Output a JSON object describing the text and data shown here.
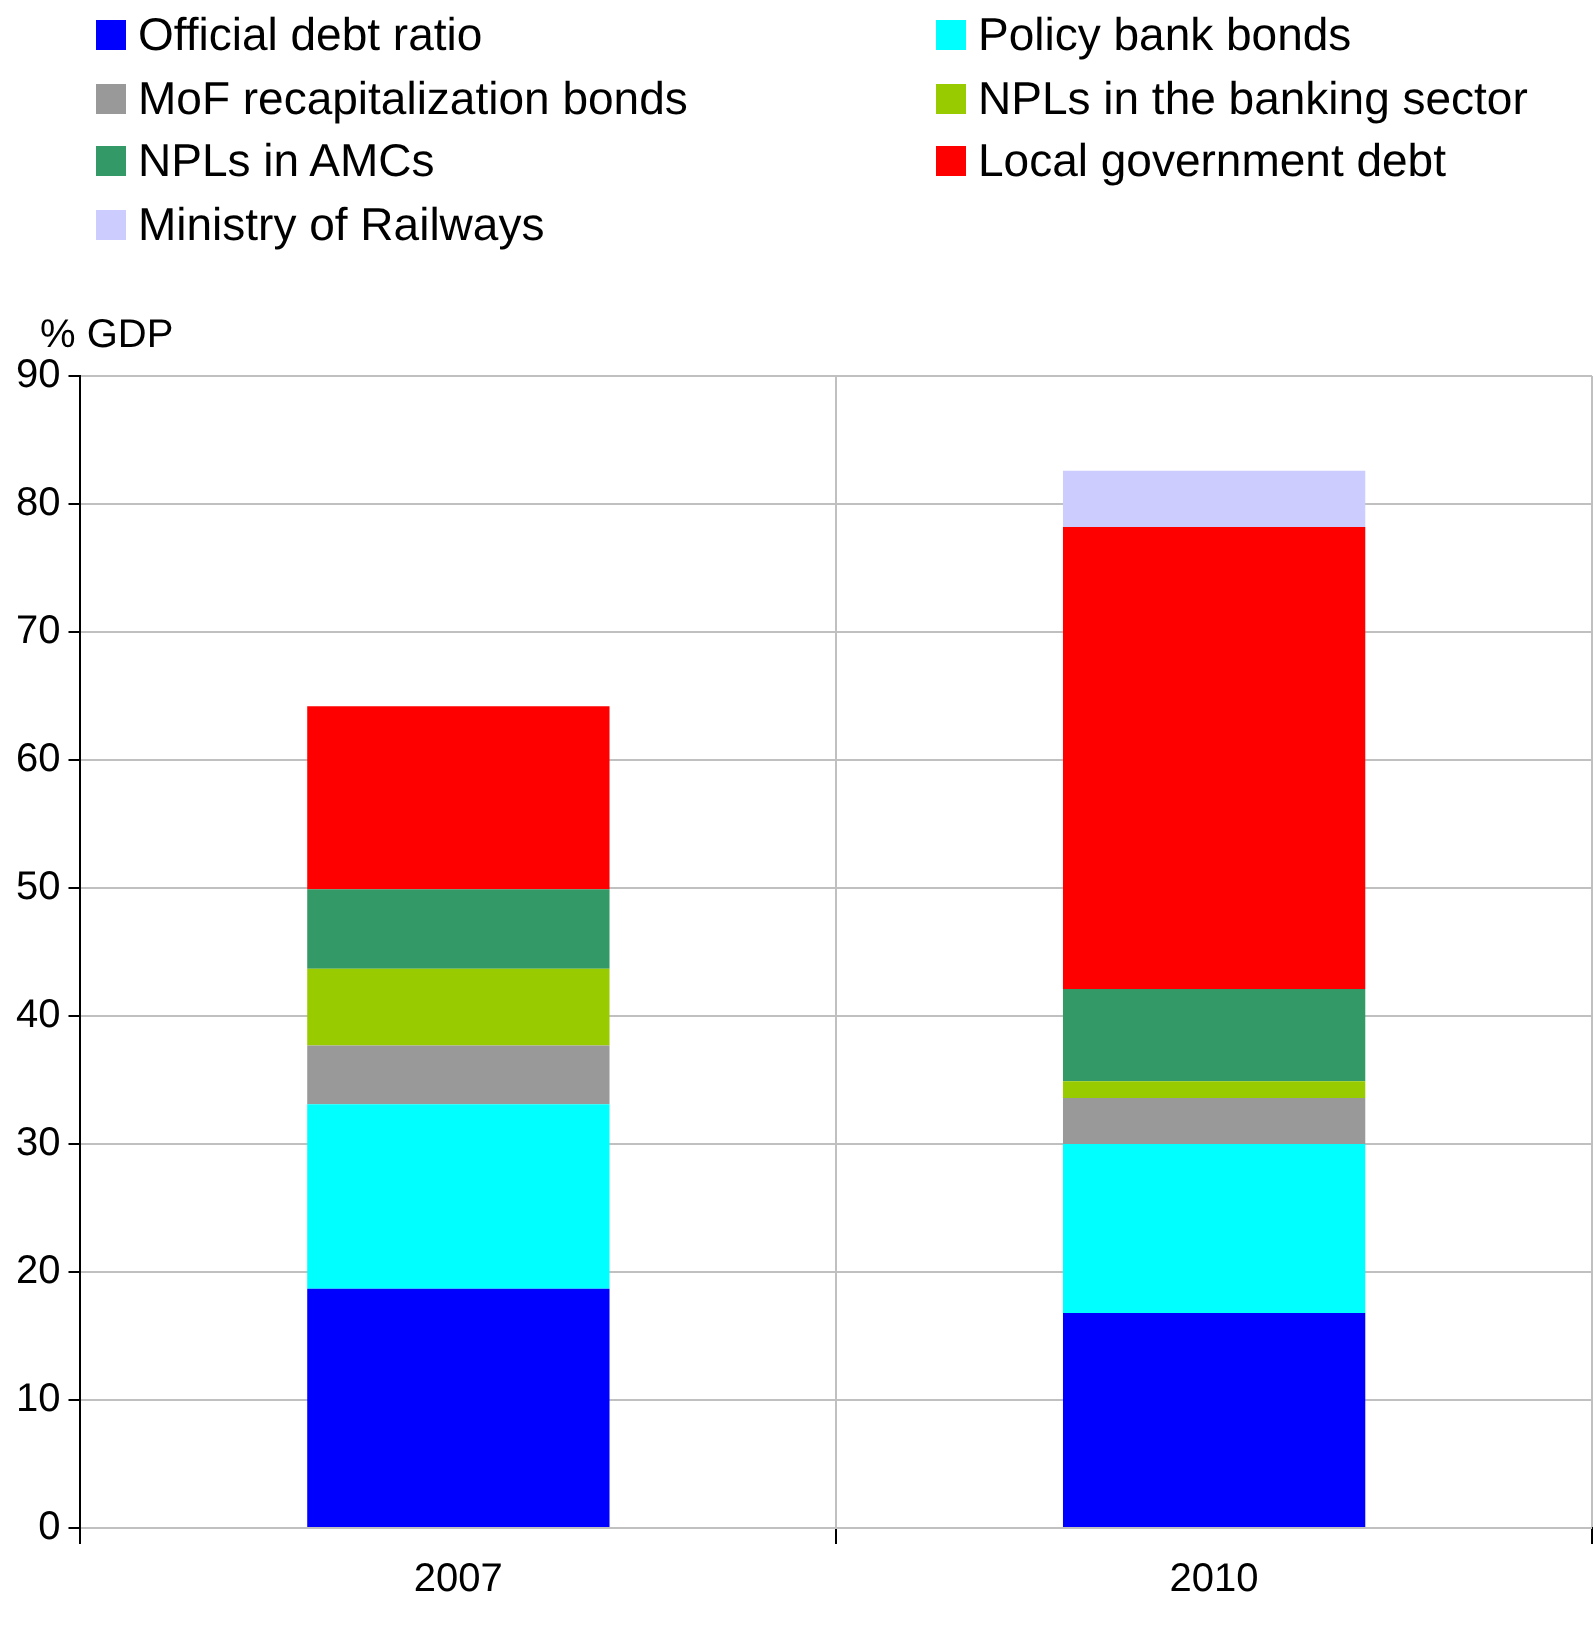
{
  "chart_data": {
    "type": "bar",
    "stacked": true,
    "ylabel": "% GDP",
    "categories": [
      "2007",
      "2010"
    ],
    "series": [
      {
        "name": "Official debt ratio",
        "color": "#0000ff",
        "values": [
          18.7,
          16.8
        ]
      },
      {
        "name": "Policy bank bonds",
        "color": "#00ffff",
        "values": [
          14.4,
          13.2
        ]
      },
      {
        "name": "MoF recapitalization bonds",
        "color": "#999999",
        "values": [
          4.6,
          3.6
        ]
      },
      {
        "name": "NPLs in the banking sector",
        "color": "#99cc00",
        "values": [
          6.0,
          1.3
        ]
      },
      {
        "name": "NPLs in AMCs",
        "color": "#339966",
        "values": [
          6.2,
          7.2
        ]
      },
      {
        "name": "Local government debt",
        "color": "#ff0000",
        "values": [
          14.3,
          36.1
        ]
      },
      {
        "name": "Ministry of Railways",
        "color": "#ccccff",
        "values": [
          null,
          4.4
        ]
      }
    ],
    "ylim": [
      0,
      90
    ],
    "yticks": [
      0,
      10,
      20,
      30,
      40,
      50,
      60,
      70,
      80,
      90
    ],
    "grid": true,
    "legend": "top"
  }
}
